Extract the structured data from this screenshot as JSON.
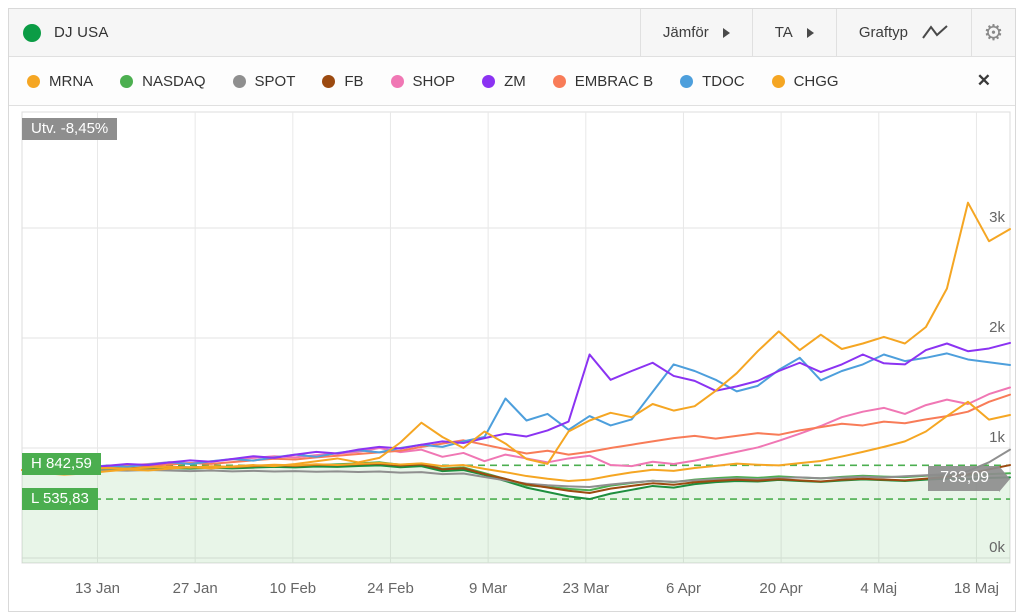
{
  "header": {
    "title": "DJ USA",
    "title_dot_color": "#0B9C45",
    "compare_label": "Jämför",
    "ta_label": "TA",
    "charttype_label": "Graftyp"
  },
  "legend": {
    "close_glyph": "✕",
    "items": [
      {
        "label": "MRNA",
        "color": "#F5A623"
      },
      {
        "label": "NASDAQ",
        "color": "#4CAF50"
      },
      {
        "label": "SPOT",
        "color": "#8F8F8F"
      },
      {
        "label": "FB",
        "color": "#9C4A10"
      },
      {
        "label": "SHOP",
        "color": "#F077B4"
      },
      {
        "label": "ZM",
        "color": "#8B33F2"
      },
      {
        "label": "EMBRAC B",
        "color": "#F87C58"
      },
      {
        "label": "TDOC",
        "color": "#4D9FDC"
      },
      {
        "label": "CHGG",
        "color": "#F5A623"
      }
    ]
  },
  "chart_data": {
    "type": "line",
    "x_tick_labels": [
      "13 Jan",
      "27 Jan",
      "10 Feb",
      "24 Feb",
      "9 Mar",
      "23 Mar",
      "6 Apr",
      "20 Apr",
      "4 Maj",
      "18 Maj"
    ],
    "y_tick_labels": [
      "0k",
      "1k",
      "2k",
      "3k"
    ],
    "y_tick_values": [
      0,
      1000,
      2000,
      3000
    ],
    "ylim": [
      0,
      4050
    ],
    "grid": true,
    "badges": {
      "utv": "Utv. -8,45%",
      "high": "H 842,59",
      "low": "L 535,83",
      "last": "733,09"
    },
    "high_value": 842.59,
    "low_value": 535.83,
    "last_value": 733.09,
    "dashed_line_color": "#4CAF50",
    "area_fill_color": "rgba(76,175,80,0.13)",
    "series": [
      {
        "name": "DJ USA",
        "color": "#1E8E3E",
        "area": true,
        "values": [
          800,
          806,
          798,
          804,
          810,
          805,
          812,
          818,
          812,
          820,
          815,
          822,
          828,
          824,
          832,
          828,
          836,
          842,
          825,
          835,
          790,
          800,
          755,
          700,
          640,
          600,
          560,
          536,
          585,
          620,
          655,
          640,
          672,
          690,
          700,
          695,
          710,
          700,
          692,
          705,
          715,
          708,
          700,
          712,
          722,
          718,
          728,
          733
        ]
      },
      {
        "name": "NASDAQ",
        "color": "#4CAF50",
        "area": false,
        "values": [
          800,
          808,
          802,
          810,
          816,
          812,
          820,
          826,
          820,
          830,
          824,
          834,
          840,
          836,
          846,
          852,
          860,
          870,
          848,
          858,
          812,
          824,
          772,
          718,
          660,
          645,
          628,
          616,
          658,
          682,
          702,
          690,
          712,
          726,
          736,
          728,
          742,
          732,
          724,
          738,
          748,
          740,
          735,
          748,
          756,
          750,
          762,
          770
        ]
      },
      {
        "name": "SPOT",
        "color": "#8F8F8F",
        "area": false,
        "values": [
          800,
          795,
          788,
          792,
          798,
          794,
          800,
          796,
          790,
          795,
          788,
          792,
          786,
          790,
          784,
          788,
          782,
          786,
          776,
          781,
          762,
          768,
          736,
          706,
          676,
          661,
          651,
          645,
          668,
          686,
          701,
          693,
          706,
          716,
          723,
          717,
          727,
          733,
          725,
          731,
          739,
          733,
          743,
          752,
          762,
          790,
          870,
          985
        ]
      },
      {
        "name": "FB",
        "color": "#9C4A10",
        "area": false,
        "values": [
          800,
          810,
          804,
          814,
          820,
          816,
          824,
          830,
          824,
          832,
          826,
          836,
          842,
          838,
          848,
          844,
          852,
          858,
          841,
          851,
          806,
          816,
          763,
          719,
          669,
          641,
          611,
          591,
          631,
          656,
          679,
          666,
          689,
          701,
          711,
          703,
          716,
          706,
          696,
          711,
          721,
          713,
          706,
          722,
          738,
          760,
          806,
          845
        ]
      },
      {
        "name": "SHOP",
        "color": "#F077B4",
        "area": false,
        "values": [
          800,
          815,
          808,
          820,
          830,
          840,
          855,
          870,
          860,
          880,
          895,
          910,
          925,
          915,
          935,
          950,
          965,
          1000,
          962,
          985,
          920,
          955,
          880,
          940,
          905,
          870,
          905,
          930,
          845,
          835,
          875,
          855,
          885,
          925,
          965,
          1005,
          1065,
          1130,
          1200,
          1280,
          1330,
          1365,
          1310,
          1390,
          1440,
          1400,
          1490,
          1550
        ]
      },
      {
        "name": "EMBRAC B",
        "color": "#F87C58",
        "area": false,
        "values": [
          800,
          812,
          806,
          818,
          830,
          842,
          836,
          850,
          862,
          856,
          872,
          888,
          902,
          895,
          915,
          930,
          945,
          960,
          975,
          1010,
          1040,
          1070,
          1030,
          990,
          950,
          975,
          940,
          965,
          1000,
          1030,
          1060,
          1090,
          1110,
          1085,
          1110,
          1135,
          1120,
          1160,
          1190,
          1220,
          1205,
          1240,
          1225,
          1260,
          1290,
          1330,
          1420,
          1485
        ]
      },
      {
        "name": "TDOC",
        "color": "#4D9FDC",
        "area": false,
        "values": [
          800,
          815,
          805,
          825,
          840,
          830,
          850,
          870,
          855,
          880,
          900,
          885,
          915,
          940,
          920,
          955,
          980,
          960,
          1000,
          1030,
          1010,
          1060,
          1100,
          1450,
          1250,
          1310,
          1165,
          1290,
          1205,
          1260,
          1510,
          1760,
          1700,
          1620,
          1515,
          1565,
          1710,
          1820,
          1615,
          1700,
          1760,
          1850,
          1790,
          1820,
          1860,
          1805,
          1780,
          1755
        ]
      },
      {
        "name": "ZM",
        "color": "#8B33F2",
        "area": false,
        "values": [
          800,
          812,
          825,
          818,
          838,
          855,
          845,
          868,
          888,
          875,
          900,
          925,
          910,
          940,
          965,
          950,
          985,
          1010,
          995,
          1030,
          1060,
          1045,
          1090,
          1130,
          1105,
          1160,
          1240,
          1850,
          1620,
          1700,
          1775,
          1655,
          1610,
          1520,
          1560,
          1610,
          1700,
          1775,
          1690,
          1760,
          1850,
          1770,
          1760,
          1890,
          1950,
          1880,
          1905,
          1955
        ]
      },
      {
        "name": "CHGG",
        "color": "#F5A623",
        "area": false,
        "values": [
          800,
          806,
          798,
          810,
          818,
          812,
          822,
          830,
          822,
          834,
          828,
          840,
          848,
          842,
          852,
          846,
          856,
          864,
          850,
          860,
          835,
          845,
          810,
          780,
          745,
          720,
          700,
          712,
          748,
          778,
          802,
          792,
          818,
          838,
          858,
          848,
          842,
          862,
          882,
          922,
          965,
          1010,
          1060,
          1150,
          1290,
          1420,
          1258,
          1300
        ]
      },
      {
        "name": "MRNA",
        "color": "#F5A623",
        "area": false,
        "values": [
          800,
          772,
          758,
          768,
          788,
          805,
          795,
          812,
          825,
          815,
          832,
          845,
          835,
          855,
          880,
          905,
          870,
          910,
          1050,
          1230,
          1100,
          1000,
          1150,
          1040,
          900,
          856,
          1150,
          1250,
          1320,
          1280,
          1400,
          1340,
          1380,
          1520,
          1680,
          1880,
          2060,
          1890,
          2030,
          1900,
          1950,
          2010,
          1950,
          2100,
          2450,
          3230,
          2880,
          2990
        ]
      }
    ]
  }
}
